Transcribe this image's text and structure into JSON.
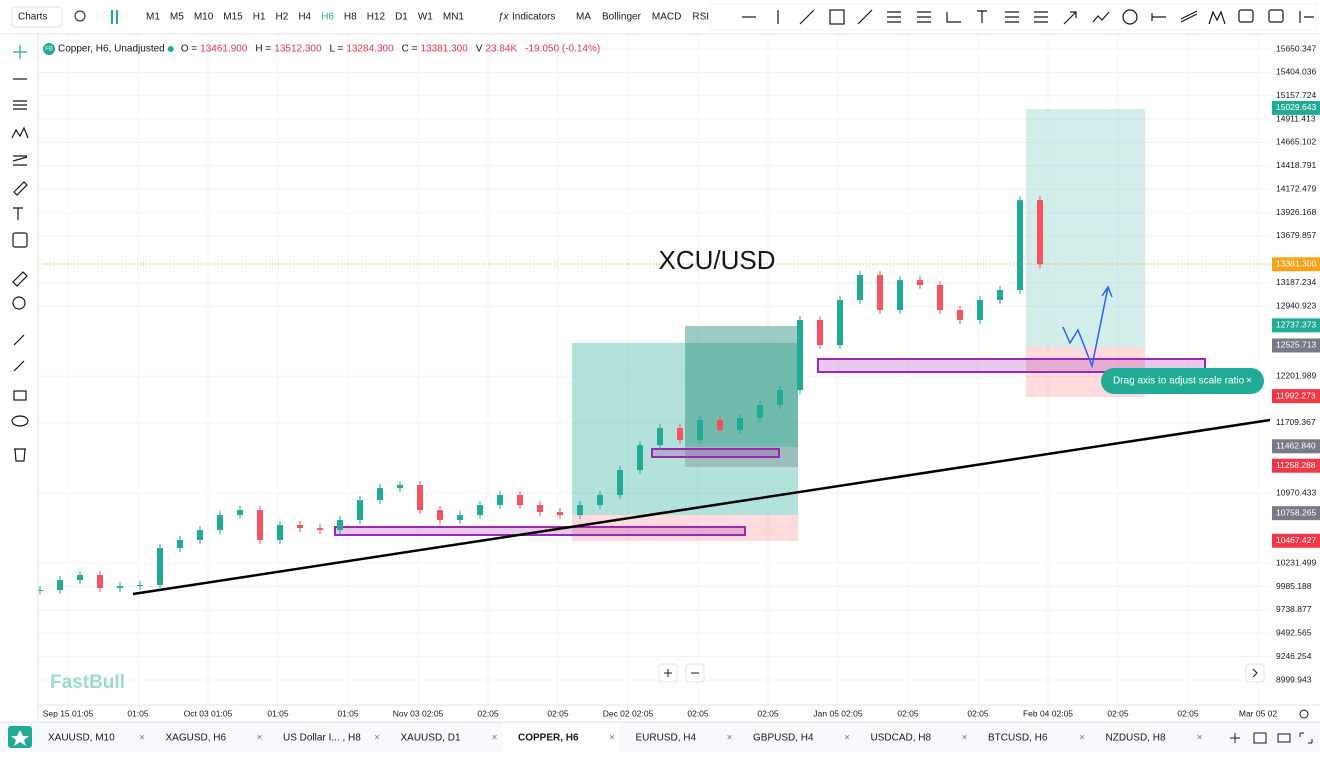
{
  "toolbar": {
    "menu": "Charts",
    "timeframes": [
      "M1",
      "M5",
      "M10",
      "M15",
      "H1",
      "H2",
      "H4",
      "H6",
      "H8",
      "H12",
      "D1",
      "W1",
      "MN1"
    ],
    "active_timeframe_index": 7,
    "indicators": "Indicators",
    "studies": [
      "MA",
      "Bollinger",
      "MACD",
      "RSI"
    ]
  },
  "legend": {
    "badge": "FB",
    "symbol": "Copper, H6, Unadjusted",
    "fields": [
      {
        "label": "O =",
        "value": "13461.900"
      },
      {
        "label": "H =",
        "value": "13512.300"
      },
      {
        "label": "L =",
        "value": "13284.300"
      },
      {
        "label": "C =",
        "value": "13381.300"
      },
      {
        "label": "V",
        "value": "23.84K"
      }
    ],
    "change": "-19.050 (-0.14%)"
  },
  "annotation": "XCU/USD",
  "tooltip": "Drag axis to adjust scale ratio",
  "watermark": "FastBull",
  "price_chart": {
    "closes": [
      9948,
      10053,
      10106,
      9969,
      9990,
      10001,
      10391,
      10475,
      10580,
      10738,
      10791,
      10475,
      10633,
      10601,
      10580,
      10686,
      10896,
      11023,
      11055,
      10791,
      10686,
      10738,
      10844,
      10949,
      10844,
      10770,
      10738,
      10844,
      10949,
      11213,
      11476,
      11655,
      11529,
      11740,
      11634,
      11761,
      11898,
      12056,
      12794,
      12530,
      13004,
      13268,
      12899,
      13215,
      13163,
      12899,
      12794,
      13004,
      13110,
      14058,
      13381
    ],
    "price_axis": [
      15650.347,
      15404.036,
      15157.724,
      14911.413,
      14665.102,
      14418.791,
      14172.479,
      13926.168,
      13679.857,
      13187.234,
      12940.923,
      12201.989,
      11709.367,
      10970.433,
      10231.499,
      9985.188,
      9738.877,
      9492.565,
      9246.254,
      8999.943
    ],
    "price_badges": [
      {
        "value": 15029.643,
        "label": "15029.643",
        "color": "#22ab94"
      },
      {
        "value": 13381.3,
        "label": "13381.300",
        "color": "#f7a21b"
      },
      {
        "value": 12737.373,
        "label": "12737.373",
        "color": "#22ab94"
      },
      {
        "value": 12525.713,
        "label": "12525.713",
        "color": "#787b86"
      },
      {
        "value": 11992.273,
        "label": "11992.273",
        "color": "#f23645"
      },
      {
        "value": 11462.84,
        "label": "11462.840",
        "color": "#787b86"
      },
      {
        "value": 11258.288,
        "label": "11258.288",
        "color": "#f23645"
      },
      {
        "value": 10758.265,
        "label": "10758.265",
        "color": "#787b86"
      },
      {
        "value": 10467.427,
        "label": "10467.427",
        "color": "#f23645"
      }
    ],
    "time_axis": [
      "Sep 15 01:05",
      "01:05",
      "Oct 03 01:05",
      "01:05",
      "01:05",
      "Nov 03 02:05",
      "02:05",
      "02:05",
      "Dec 02 02:05",
      "02:05",
      "02:05",
      "Jan 05 02:05",
      "02:05",
      "02:05",
      "Feb 04 02:05",
      "02:05",
      "02:05",
      "Mar 05 02"
    ]
  },
  "tabs": [
    "XAUUSD, M10",
    "XAGUSD, H6",
    "US Dollar I... , H8",
    "XAUUSD, D1",
    "COPPER, H6",
    "EURUSD, H4",
    "GBPUSD, H4",
    "USDCAD, H8",
    "BTCUSD, H6",
    "NZDUSD, H8"
  ],
  "active_tab_index": 4
}
